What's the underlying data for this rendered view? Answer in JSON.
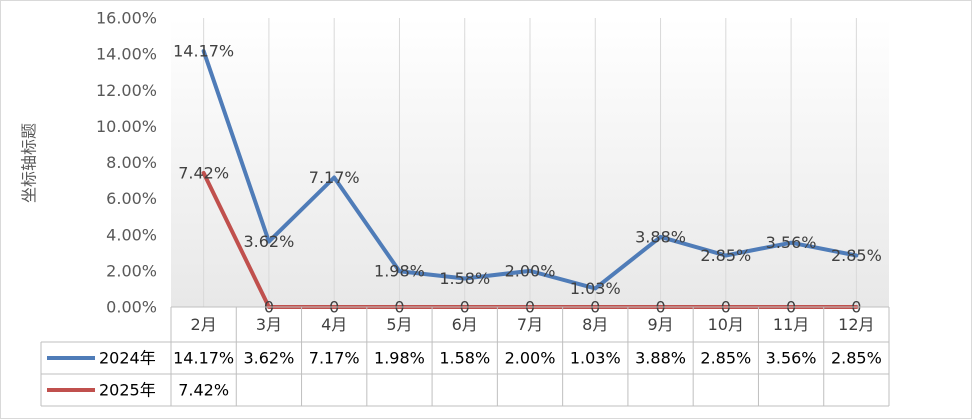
{
  "chart_data": {
    "type": "line",
    "ylabel": "坐标轴标题",
    "ylim": [
      0,
      16
    ],
    "yticks": [
      "0.00%",
      "2.00%",
      "4.00%",
      "6.00%",
      "8.00%",
      "10.00%",
      "12.00%",
      "14.00%",
      "16.00%"
    ],
    "categories": [
      "2月",
      "3月",
      "4月",
      "5月",
      "6月",
      "7月",
      "8月",
      "9月",
      "10月",
      "11月",
      "12月"
    ],
    "grid": "vertical",
    "legend": "data-table",
    "series": [
      {
        "name": "2024年",
        "color": "#4f7cb8",
        "values": [
          14.17,
          3.62,
          7.17,
          1.98,
          1.58,
          2.0,
          1.03,
          3.88,
          2.85,
          3.56,
          2.85
        ],
        "labels": [
          "14.17%",
          "3.62%",
          "7.17%",
          "1.98%",
          "1.58%",
          "2.00%",
          "1.03%",
          "3.88%",
          "2.85%",
          "3.56%",
          "2.85%"
        ],
        "table": [
          "14.17%",
          "3.62%",
          "7.17%",
          "1.98%",
          "1.58%",
          "2.00%",
          "1.03%",
          "3.88%",
          "2.85%",
          "3.56%",
          "2.85%"
        ]
      },
      {
        "name": "2025年",
        "color": "#c0504d",
        "values": [
          7.42,
          0,
          0,
          0,
          0,
          0,
          0,
          0,
          0,
          0,
          0
        ],
        "labels": [
          "7.42%",
          "0",
          "0",
          "0",
          "0",
          "0",
          "0",
          "0",
          "0",
          "0",
          "0"
        ],
        "table": [
          "7.42%",
          "",
          "",
          "",
          "",
          "",
          "",
          "",
          "",
          "",
          ""
        ]
      }
    ]
  }
}
